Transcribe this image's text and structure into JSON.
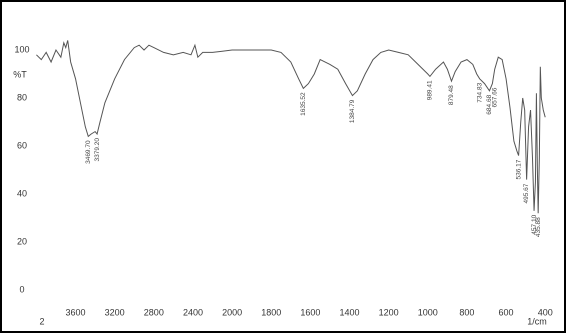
{
  "chart_data": {
    "type": "line",
    "ylabel": "%T",
    "xlabel": "1/cm",
    "corner_label": "2",
    "color": "#555555",
    "xlim": [
      4000,
      350
    ],
    "xbreak": 2000,
    "xticks": [
      3600,
      3200,
      2800,
      2400,
      2000,
      1800,
      1600,
      1400,
      1200,
      1000,
      800,
      600,
      400
    ],
    "ylim": [
      -5,
      110
    ],
    "yticks": [
      0,
      20,
      40,
      60,
      80,
      100
    ],
    "x": [
      4000,
      3950,
      3900,
      3850,
      3800,
      3750,
      3720,
      3700,
      3680,
      3650,
      3600,
      3550,
      3500,
      3470,
      3440,
      3400,
      3380,
      3350,
      3300,
      3200,
      3100,
      3000,
      2950,
      2900,
      2850,
      2800,
      2700,
      2600,
      2500,
      2420,
      2380,
      2350,
      2300,
      2200,
      2100,
      2000,
      1900,
      1800,
      1750,
      1700,
      1660,
      1636,
      1610,
      1580,
      1550,
      1500,
      1460,
      1420,
      1385,
      1360,
      1320,
      1280,
      1240,
      1200,
      1150,
      1100,
      1050,
      1000,
      989,
      960,
      920,
      900,
      879,
      860,
      830,
      800,
      770,
      750,
      735,
      710,
      685,
      670,
      658,
      640,
      620,
      600,
      580,
      560,
      545,
      536,
      525,
      515,
      505,
      495,
      485,
      475,
      465,
      457,
      450,
      445,
      440,
      436,
      430,
      425,
      420,
      410,
      400
    ],
    "values": [
      98,
      96,
      99,
      95,
      100,
      97,
      103,
      101,
      104,
      95,
      88,
      78,
      68,
      64,
      65,
      66,
      65,
      70,
      78,
      88,
      96,
      101,
      102,
      100,
      102,
      101,
      99,
      98,
      99,
      98,
      102,
      97,
      99,
      99,
      99.5,
      100,
      100,
      100,
      99,
      95,
      88,
      84,
      86,
      90,
      96,
      94,
      92,
      86,
      81,
      83,
      90,
      96,
      99,
      100,
      99,
      98,
      94,
      90,
      89,
      92,
      95,
      92,
      87,
      91,
      95,
      96,
      94,
      90,
      88,
      86,
      83,
      86,
      92,
      97,
      96,
      88,
      76,
      62,
      58,
      56,
      70,
      80,
      75,
      46,
      68,
      75,
      55,
      33,
      45,
      82,
      50,
      32,
      55,
      93,
      80,
      75,
      72
    ],
    "annotations": [
      {
        "x": 3469.7,
        "y": 64,
        "label": "3469.70"
      },
      {
        "x": 3379.2,
        "y": 65,
        "label": "3379.20"
      },
      {
        "x": 1635.52,
        "y": 84,
        "label": "1635.52"
      },
      {
        "x": 1384.79,
        "y": 81,
        "label": "1384.79"
      },
      {
        "x": 989.41,
        "y": 89,
        "label": "989.41"
      },
      {
        "x": 879.48,
        "y": 87,
        "label": "879.48"
      },
      {
        "x": 734.83,
        "y": 88,
        "label": "734.83"
      },
      {
        "x": 684.68,
        "y": 83,
        "label": "684.68"
      },
      {
        "x": 657.66,
        "y": 86,
        "label": "657.66"
      },
      {
        "x": 536.17,
        "y": 56,
        "label": "536.17"
      },
      {
        "x": 495.67,
        "y": 46,
        "label": "495.67"
      },
      {
        "x": 457.1,
        "y": 33,
        "label": "457.10"
      },
      {
        "x": 435.88,
        "y": 32,
        "label": "435.88"
      }
    ]
  }
}
